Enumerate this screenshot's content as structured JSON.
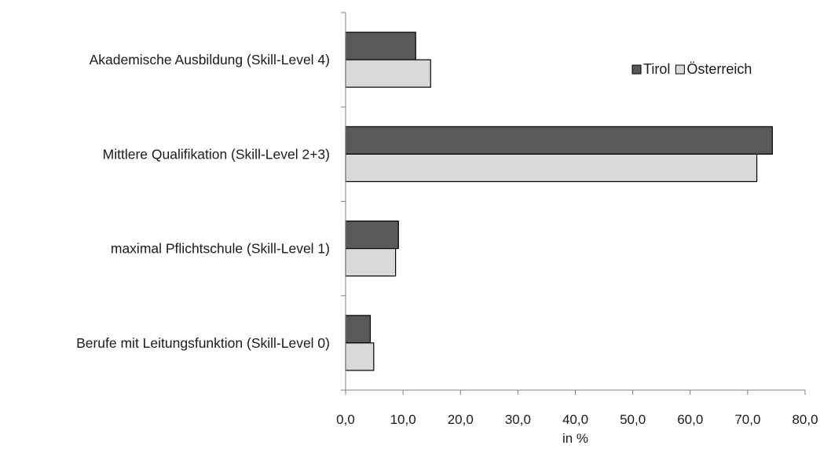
{
  "chart_data": {
    "type": "bar",
    "orientation": "horizontal",
    "categories": [
      "Akademische Ausbildung (Skill-Level 4)",
      "Mittlere Qualifikation (Skill-Level 2+3)",
      "maximal Pflichtschule (Skill-Level 1)",
      "Berufe mit Leitungsfunktion (Skill-Level 0)"
    ],
    "series": [
      {
        "name": "Tirol",
        "color": "#595959",
        "values": [
          12.2,
          74.3,
          9.2,
          4.3
        ]
      },
      {
        "name": "Österreich",
        "color": "#d9d9d9",
        "values": [
          14.8,
          71.6,
          8.7,
          4.9
        ]
      }
    ],
    "xlim": [
      0,
      80
    ],
    "xticks": [
      0,
      10,
      20,
      30,
      40,
      50,
      60,
      70,
      80
    ],
    "xtick_labels": [
      "0,0",
      "10,0",
      "20,0",
      "30,0",
      "40,0",
      "50,0",
      "60,0",
      "70,0",
      "80,0"
    ],
    "xlabel": "in %",
    "ylabel": "",
    "title": "",
    "grid": false,
    "legend_position": "top-right"
  }
}
